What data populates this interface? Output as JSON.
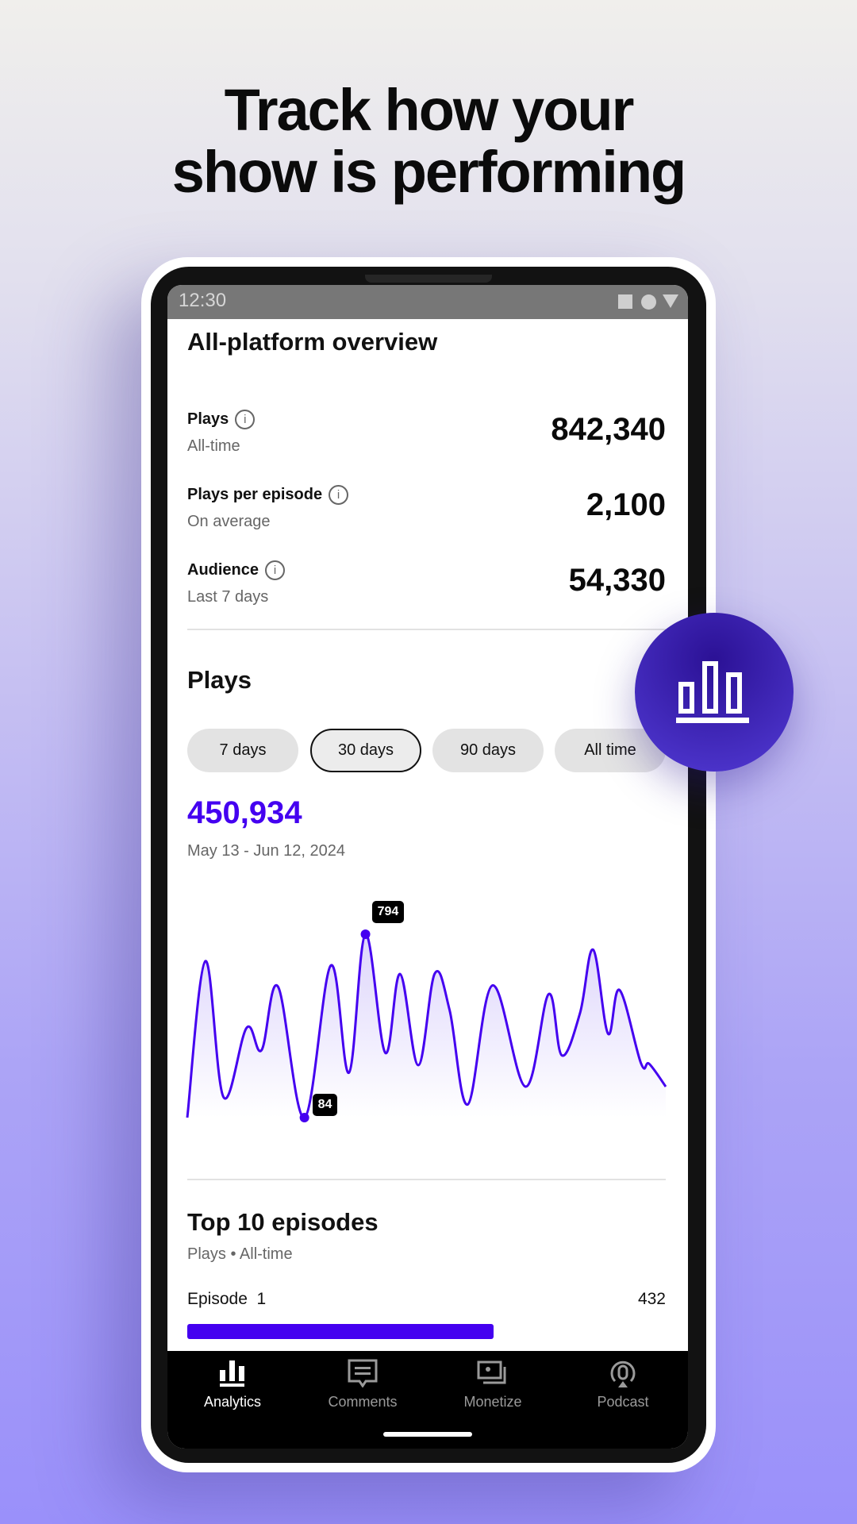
{
  "headline": {
    "line1": "Track how your",
    "line2": "show is performing"
  },
  "status_bar": {
    "time": "12:30"
  },
  "overview": {
    "title": "All-platform overview",
    "stats": [
      {
        "label": "Plays",
        "sublabel": "All-time",
        "value": "842,340"
      },
      {
        "label": "Plays per episode",
        "sublabel": "On average",
        "value": "2,100"
      },
      {
        "label": "Audience",
        "sublabel": "Last 7 days",
        "value": "54,330"
      }
    ]
  },
  "plays": {
    "title": "Plays",
    "ranges": [
      {
        "label": "7 days",
        "selected": false
      },
      {
        "label": "30 days",
        "selected": true
      },
      {
        "label": "90 days",
        "selected": false
      },
      {
        "label": "All time",
        "selected": false
      }
    ],
    "total": "450,934",
    "date_range": "May 13 - Jun 12, 2024",
    "max_label": "794",
    "min_label": "84"
  },
  "chart_data": {
    "type": "area",
    "color": "#4400f0",
    "grid": false,
    "points": [
      [
        0,
        84
      ],
      [
        1.1,
        690
      ],
      [
        2.2,
        163
      ],
      [
        3.6,
        432
      ],
      [
        4.5,
        345
      ],
      [
        5.5,
        591
      ],
      [
        7.1,
        84
      ],
      [
        8.7,
        673
      ],
      [
        9.8,
        258
      ],
      [
        10.8,
        794
      ],
      [
        12.0,
        335
      ],
      [
        12.9,
        640
      ],
      [
        14.0,
        287
      ],
      [
        15.0,
        642
      ],
      [
        15.9,
        500
      ],
      [
        17.0,
        135
      ],
      [
        18.5,
        596
      ],
      [
        20.5,
        204
      ],
      [
        21.9,
        562
      ],
      [
        22.7,
        325
      ],
      [
        23.8,
        488
      ],
      [
        24.6,
        734
      ],
      [
        25.5,
        409
      ],
      [
        26.2,
        578
      ],
      [
        27.5,
        294
      ],
      [
        28.0,
        292
      ],
      [
        29,
        204
      ]
    ],
    "annotations": [
      {
        "x": 10.8,
        "y": 794,
        "label": "794"
      },
      {
        "x": 7.1,
        "y": 84,
        "label": "84"
      }
    ]
  },
  "top_episodes": {
    "title": "Top 10 episodes",
    "subtitle": "Plays • All-time",
    "items": [
      {
        "name": "Episode  1",
        "value": "432",
        "fraction": 0.64
      }
    ]
  },
  "nav": [
    {
      "label": "Analytics",
      "icon": "bar-chart-icon",
      "active": true
    },
    {
      "label": "Comments",
      "icon": "comment-icon",
      "active": false
    },
    {
      "label": "Monetize",
      "icon": "money-icon",
      "active": false
    },
    {
      "label": "Podcast",
      "icon": "podcast-icon",
      "active": false
    }
  ],
  "colors": {
    "accent": "#4400f0",
    "fab": "#3a22b8"
  }
}
